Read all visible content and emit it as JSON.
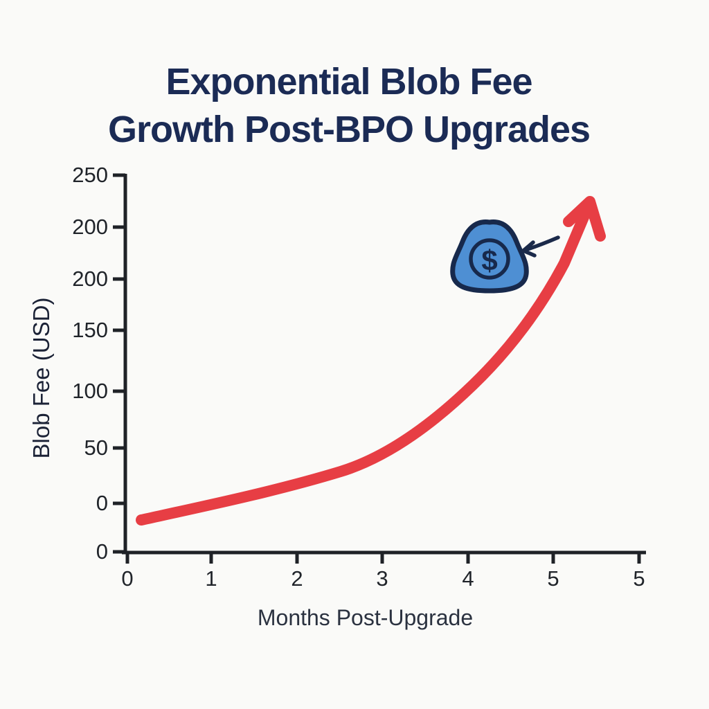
{
  "title": {
    "line1": "Exponential Blob Fee",
    "line2": "Growth Post-BPO Upgrades"
  },
  "y_axis": {
    "label": "Blob Fee (USD)",
    "ticks": [
      "250",
      "200",
      "200",
      "150",
      "100",
      "50",
      "0",
      "0"
    ]
  },
  "x_axis": {
    "label": "Months Post-Upgrade",
    "ticks": [
      "0",
      "1",
      "2",
      "3",
      "4",
      "5",
      "5"
    ]
  },
  "annotation": {
    "icon": "blob-dollar-icon",
    "symbol": "$",
    "pointer": "small navy arrow pointing at blob icon"
  },
  "colors": {
    "background": "#fafaf8",
    "title_navy": "#1b2b55",
    "curve_red": "#e73e44",
    "blob_blue": "#4e8fd3",
    "icon_outline_navy": "#17294c",
    "axis_black": "#1f2227"
  },
  "chart_data": {
    "type": "line",
    "title": "Exponential Blob Fee Growth Post-BPO Upgrades",
    "xlabel": "Months Post-Upgrade",
    "ylabel": "Blob Fee (USD)",
    "x": [
      0,
      1,
      2,
      3,
      4,
      5
    ],
    "y": [
      2,
      8,
      18,
      45,
      100,
      190
    ],
    "end_arrow_value_approx": 225,
    "xlim": [
      0,
      5
    ],
    "ylim": [
      0,
      250
    ],
    "x_tick_labels_as_rendered": [
      "0",
      "1",
      "2",
      "3",
      "4",
      "5",
      "5"
    ],
    "y_tick_labels_as_rendered": [
      "250",
      "200",
      "200",
      "150",
      "100",
      "50",
      "0",
      "0"
    ],
    "series": [
      {
        "name": "Blob Fee",
        "color": "#e73e44",
        "style": "thick rounded stroke ending in upward arrowhead"
      }
    ],
    "grid": false,
    "legend": false
  }
}
